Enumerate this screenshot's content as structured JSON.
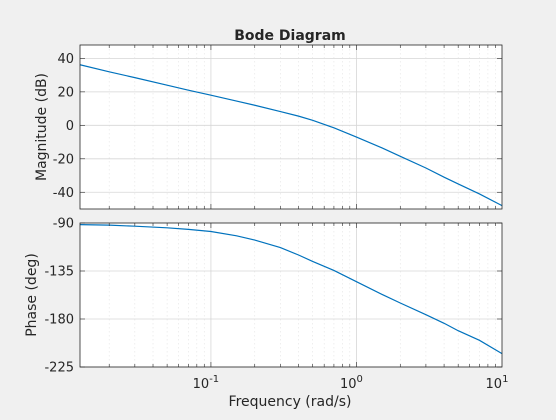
{
  "chart_data": {
    "type": "line",
    "title": "Bode Diagram",
    "xlabel": "Frequency  (rad/s)",
    "xscale": "log",
    "xlim": [
      0.0126,
      10
    ],
    "x_tick_values": [
      0.1,
      1,
      10
    ],
    "x_tick_labels": [
      {
        "base": "10",
        "exp": "-1"
      },
      {
        "base": "10",
        "exp": "0"
      },
      {
        "base": "10",
        "exp": "1"
      }
    ],
    "grid": true,
    "line_color": "#0072bd",
    "panels": [
      {
        "name": "magnitude",
        "ylabel": "Magnitude (dB)",
        "ylim": [
          -50,
          48
        ],
        "y_ticks": [
          40,
          20,
          0,
          -20,
          -40
        ],
        "y_tick_labels": [
          "40",
          "20",
          "0",
          "-20",
          "-40"
        ],
        "series": [
          {
            "x": [
              0.0126,
              0.02,
              0.03,
              0.05,
              0.07,
              0.1,
              0.15,
              0.2,
              0.3,
              0.4,
              0.5,
              0.7,
              1,
              1.5,
              2,
              3,
              4,
              5,
              7,
              10
            ],
            "y": [
              36.2,
              32.0,
              28.5,
              24.0,
              21.0,
              18.0,
              14.5,
              12.0,
              8.2,
              5.5,
              3.0,
              -1.5,
              -7.0,
              -13.5,
              -18.5,
              -25.5,
              -31.0,
              -35.0,
              -41.0,
              -48.0
            ]
          }
        ]
      },
      {
        "name": "phase",
        "ylabel": "Phase (deg)",
        "ylim": [
          -225,
          -90
        ],
        "y_ticks": [
          -90,
          -135,
          -180,
          -225
        ],
        "y_tick_labels": [
          "-90",
          "-135",
          "-180",
          "-225"
        ],
        "series": [
          {
            "x": [
              0.0126,
              0.02,
              0.03,
              0.05,
              0.07,
              0.1,
              0.15,
              0.2,
              0.3,
              0.4,
              0.5,
              0.7,
              1,
              1.5,
              2,
              3,
              4,
              5,
              7,
              10
            ],
            "y": [
              -91.5,
              -92.0,
              -93.0,
              -94.5,
              -96.0,
              -98.0,
              -102.0,
              -106.0,
              -113.0,
              -120.0,
              -126.0,
              -134.5,
              -145.0,
              -157.0,
              -165.0,
              -176.0,
              -184.0,
              -191.0,
              -200.0,
              -212.5
            ]
          }
        ]
      }
    ]
  }
}
